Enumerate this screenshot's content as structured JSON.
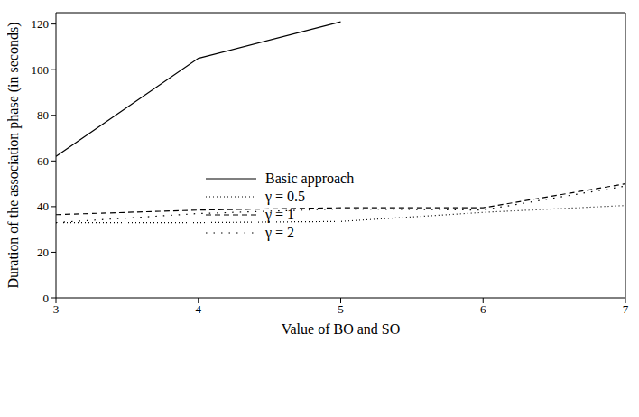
{
  "chart_data": {
    "type": "line",
    "x_label": "Value of BO and SO",
    "y_label": "Duration of the association phase (in seconds)",
    "x": [
      3,
      4,
      5,
      6,
      7
    ],
    "xlim": [
      3,
      7
    ],
    "xticks": [
      3,
      4,
      5,
      6,
      7
    ],
    "ylim": [
      0,
      125
    ],
    "yticks": [
      0,
      20,
      40,
      60,
      80,
      100,
      120
    ],
    "grid": false,
    "legend": "center",
    "series": [
      {
        "name": "Basic approach",
        "color": "#000000",
        "line_style": "solid",
        "values": [
          62,
          105,
          121,
          null,
          null
        ]
      },
      {
        "name": "γ = 0.5",
        "color": "#000000",
        "line_style": "dotted",
        "values": [
          33,
          33,
          33.5,
          37.5,
          40.5
        ]
      },
      {
        "name": "γ = 1",
        "color": "#000000",
        "line_style": "dashed",
        "values": [
          36.5,
          38.5,
          39.5,
          39.5,
          50
        ]
      },
      {
        "name": "γ = 2",
        "color": "#000000",
        "line_style": "loosely_dotted",
        "values": [
          33,
          37,
          39,
          38.5,
          49
        ]
      }
    ]
  }
}
